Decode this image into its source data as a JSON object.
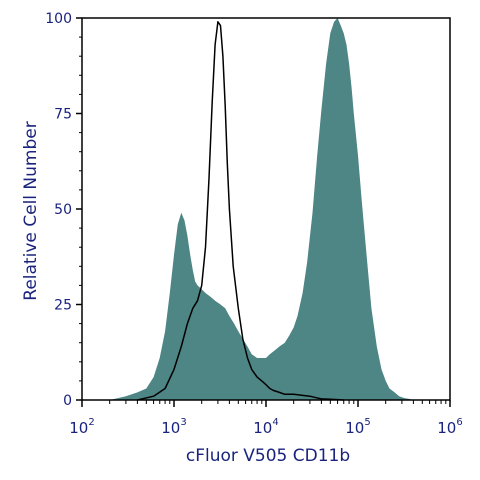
{
  "chart_data": {
    "type": "area",
    "title": "",
    "xlabel": "cFluor V505 CD11b",
    "ylabel": "Relative Cell Number",
    "x_scale": "log",
    "xlim": [
      100,
      1000000
    ],
    "ylim": [
      0,
      100
    ],
    "x_ticks": [
      {
        "value": 100,
        "base": "10",
        "exp": "2"
      },
      {
        "value": 1000,
        "base": "10",
        "exp": "3"
      },
      {
        "value": 10000,
        "base": "10",
        "exp": "4"
      },
      {
        "value": 100000,
        "base": "10",
        "exp": "5"
      },
      {
        "value": 1000000,
        "base": "10",
        "exp": "6"
      }
    ],
    "y_ticks": [
      {
        "value": 0,
        "label": "0"
      },
      {
        "value": 25,
        "label": "25"
      },
      {
        "value": 50,
        "label": "50"
      },
      {
        "value": 75,
        "label": "75"
      },
      {
        "value": 100,
        "label": "100"
      }
    ],
    "grid": false,
    "legend": "none",
    "colors": {
      "filled_series": "#4e8585",
      "outline_series": "#000000",
      "text": "#1a237e",
      "axis": "#000000"
    },
    "series": [
      {
        "style": "filled",
        "x": [
          200,
          300,
          400,
          500,
          600,
          700,
          800,
          900,
          1000,
          1100,
          1200,
          1300,
          1400,
          1500,
          1600,
          1700,
          1800,
          2000,
          2200,
          2500,
          2800,
          3200,
          3600,
          4000,
          4500,
          5000,
          5600,
          6300,
          7000,
          8000,
          9000,
          10000,
          11000,
          12500,
          14000,
          16000,
          18000,
          20000,
          22000,
          25000,
          28000,
          32000,
          36000,
          40000,
          45000,
          50000,
          55000,
          60000,
          65000,
          70000,
          75000,
          80000,
          85000,
          90000,
          100000,
          110000,
          125000,
          140000,
          160000,
          180000,
          200000,
          220000,
          250000,
          280000,
          320000,
          360000,
          400000
        ],
        "y": [
          0,
          1,
          2,
          3,
          6,
          11,
          18,
          28,
          38,
          46,
          49,
          47,
          43,
          38,
          34,
          31,
          30,
          29,
          28,
          27,
          26,
          25,
          24,
          22,
          20,
          18,
          16,
          14,
          12,
          11,
          11,
          11,
          12,
          13,
          14,
          15,
          17,
          19,
          22,
          28,
          36,
          49,
          64,
          76,
          88,
          96,
          99,
          100,
          98,
          96,
          93,
          88,
          82,
          75,
          64,
          52,
          37,
          24,
          14,
          8,
          5,
          3,
          2,
          1,
          0.5,
          0.3,
          0
        ]
      },
      {
        "style": "outline",
        "x": [
          400,
          600,
          800,
          1000,
          1200,
          1400,
          1600,
          1800,
          2000,
          2200,
          2400,
          2600,
          2800,
          3000,
          3200,
          3400,
          3600,
          3800,
          4000,
          4400,
          5000,
          5600,
          6300,
          7000,
          8000,
          9000,
          10000,
          11000,
          12000,
          14000,
          16000,
          20000,
          25000,
          30000,
          35000,
          40000,
          50000,
          60000,
          70000
        ],
        "y": [
          0,
          1,
          3,
          8,
          14,
          20,
          24,
          26,
          30,
          40,
          58,
          78,
          93,
          99,
          98,
          90,
          77,
          62,
          50,
          35,
          24,
          16,
          11,
          8,
          6,
          5,
          4,
          3,
          2.5,
          2,
          1.5,
          1.5,
          1.2,
          1,
          0.6,
          0.3,
          0.2,
          0.1,
          0
        ]
      }
    ]
  }
}
